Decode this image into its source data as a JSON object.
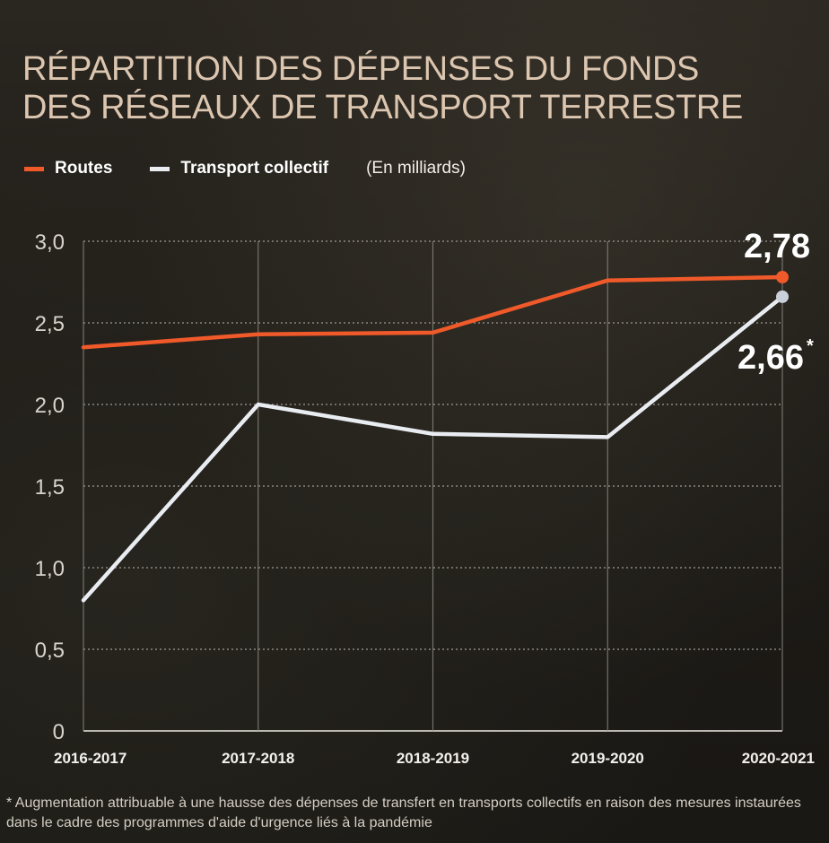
{
  "title": "RÉPARTITION DES DÉPENSES DU FONDS\nDES RÉSEAUX DE TRANSPORT TERRESTRE",
  "legend": {
    "unit": "(En milliards)"
  },
  "colors": {
    "routes": "#f05a2a",
    "transport": "#e9edf2",
    "grid": "#8b8680",
    "axis_text": "#d8d4cc",
    "title": "#dcc6b0"
  },
  "chart_data": {
    "type": "line",
    "categories": [
      "2016-2017",
      "2017-2018",
      "2018-2019",
      "2019-2020",
      "2020-2021"
    ],
    "series": [
      {
        "name": "Routes",
        "color": "#f05a2a",
        "values": [
          2.35,
          2.43,
          2.44,
          2.76,
          2.78
        ]
      },
      {
        "name": "Transport collectif",
        "color": "#e9edf2",
        "values": [
          0.8,
          2.0,
          1.82,
          1.8,
          2.66
        ]
      }
    ],
    "yticks": [
      "0",
      "0,5",
      "1,0",
      "1,5",
      "2,0",
      "2,5",
      "3,0"
    ],
    "ylim": [
      0,
      3
    ],
    "grid": true,
    "annotations": [
      {
        "series": "Routes",
        "text": "2,78"
      },
      {
        "series": "Transport collectif",
        "text": "2,66",
        "marker": "*"
      }
    ]
  },
  "footnote": "* Augmentation attribuable à une hausse des dépenses de transfert en transports collectifs en raison des mesures instaurées dans le cadre des programmes d'aide d'urgence liés à la pandémie"
}
